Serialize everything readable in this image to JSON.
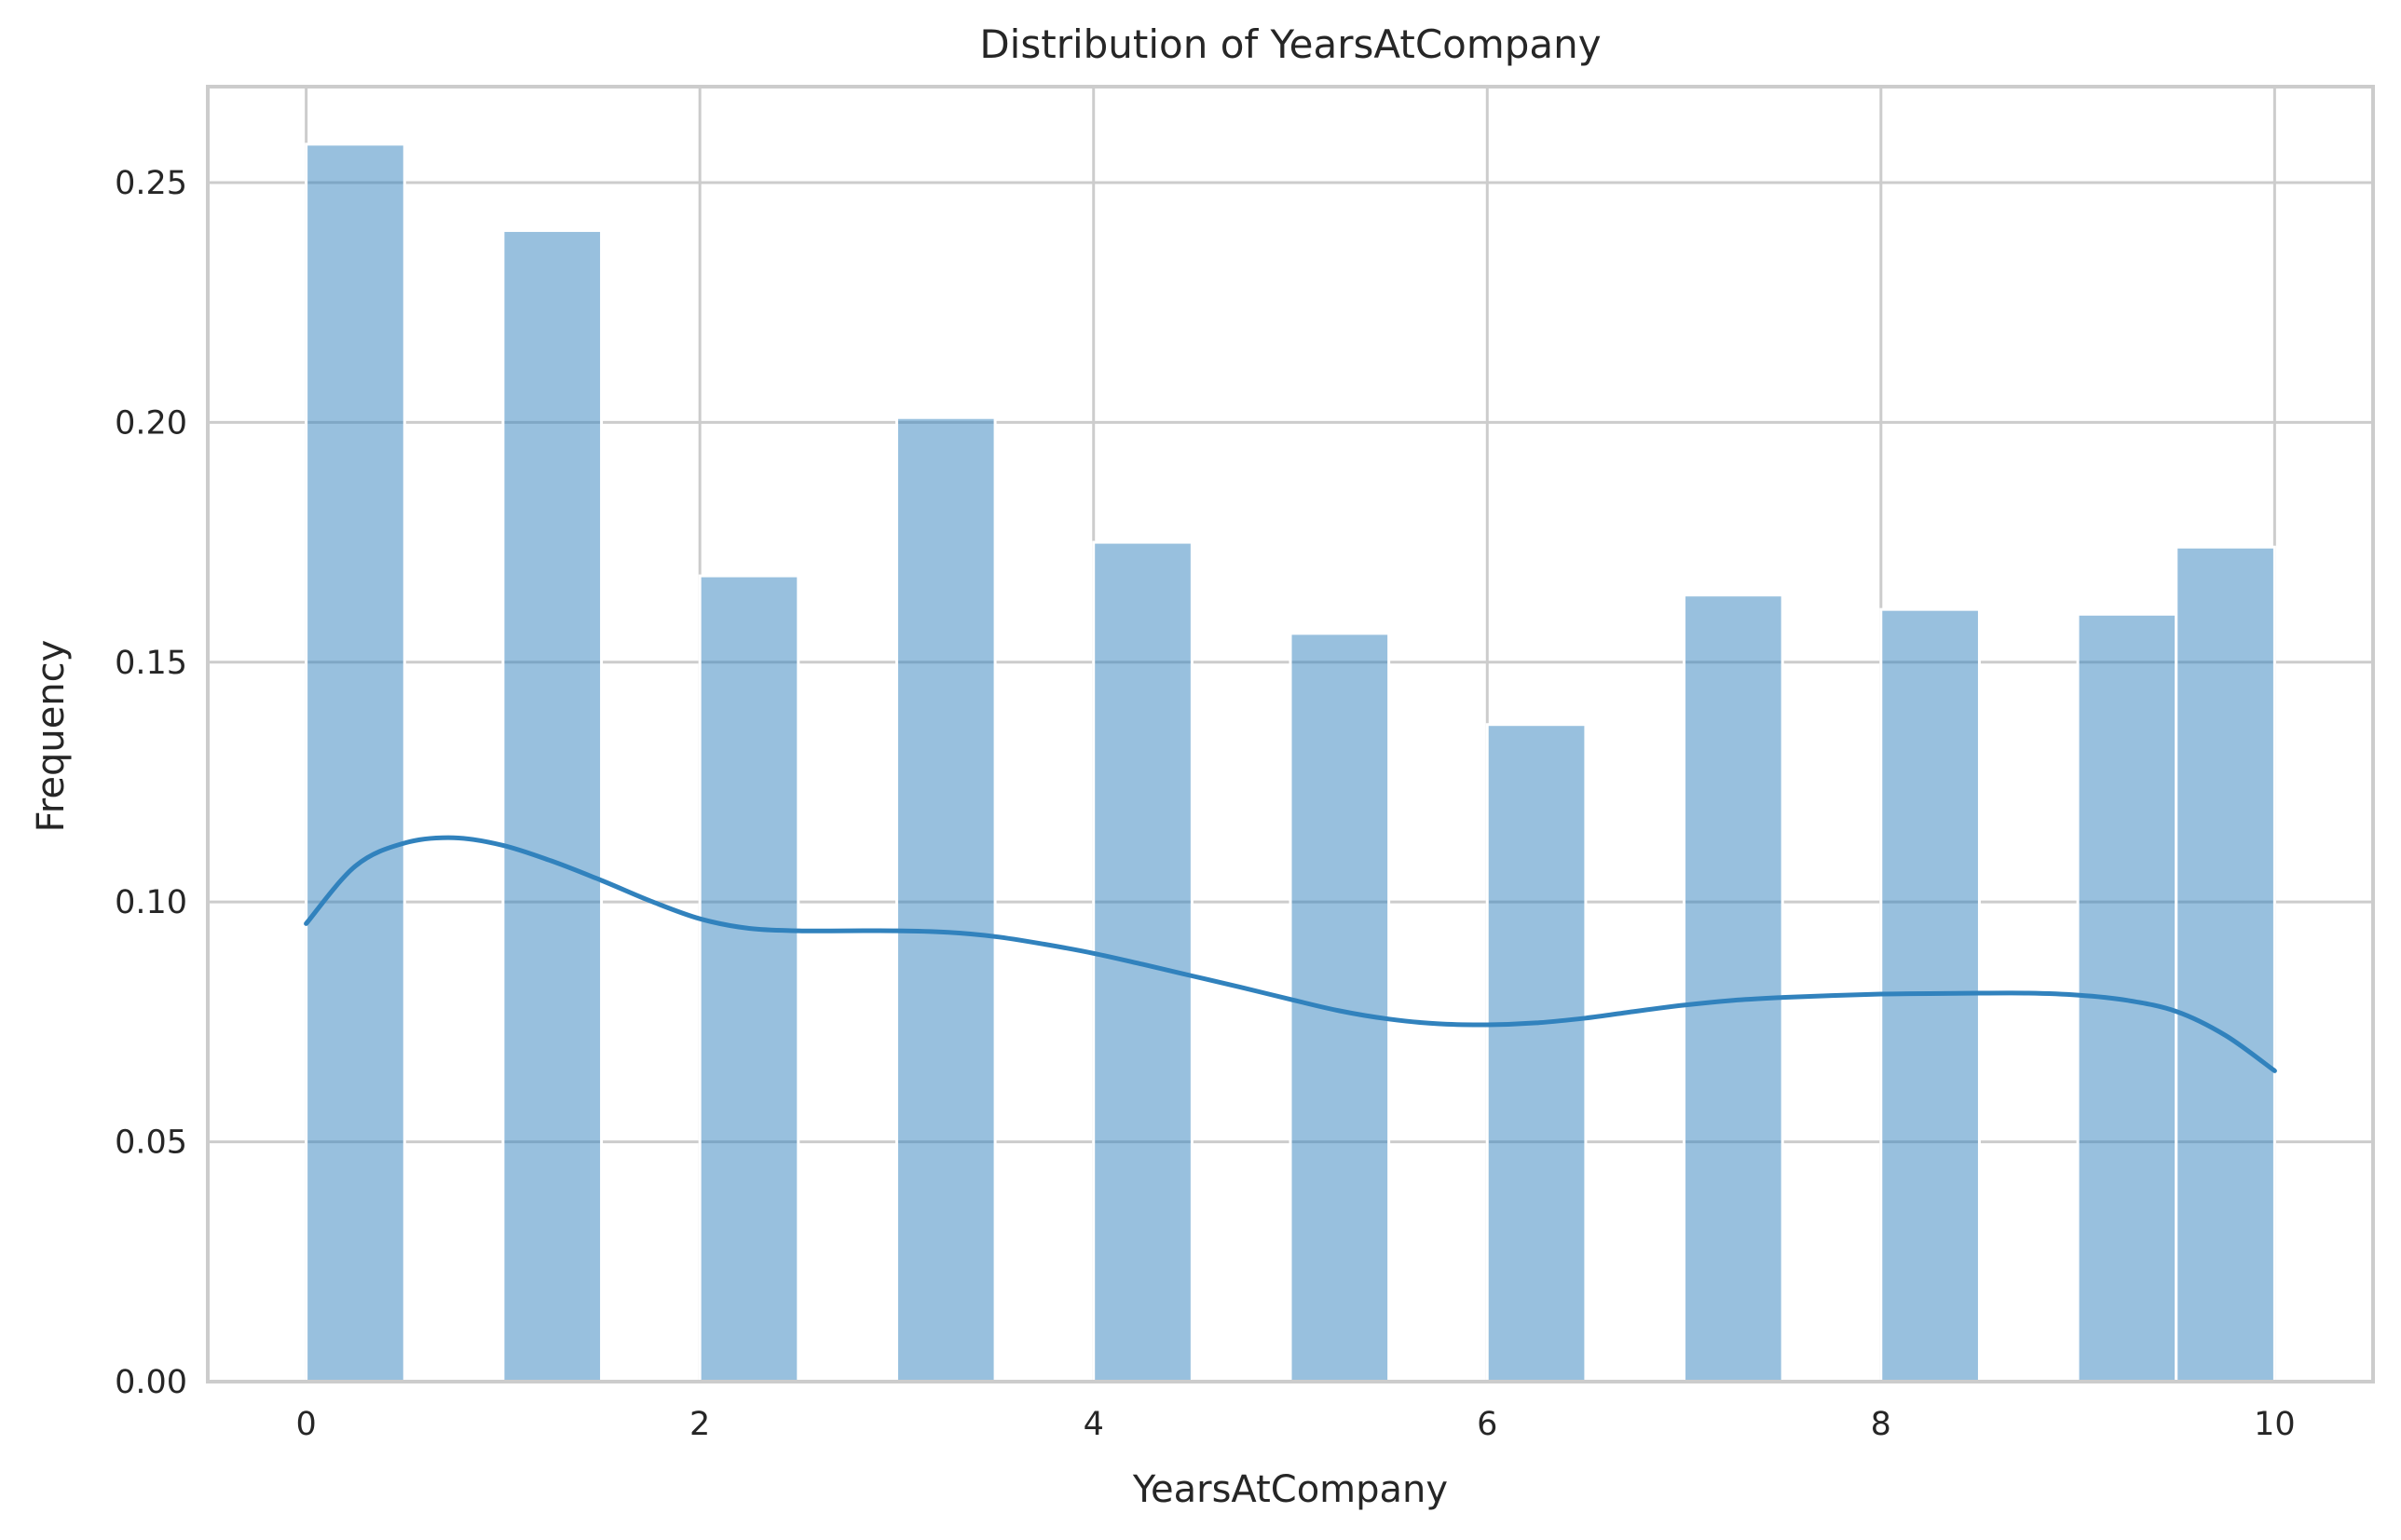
{
  "chart_data": {
    "type": "bar",
    "title": "Distribution of YearsAtCompany",
    "xlabel": "YearsAtCompany",
    "ylabel": "Frequency",
    "xlim": [
      -0.5,
      10.5
    ],
    "ylim": [
      0,
      0.27
    ],
    "xticks": [
      0,
      2,
      4,
      6,
      8,
      10
    ],
    "yticks": [
      0.0,
      0.05,
      0.1,
      0.15,
      0.2,
      0.25
    ],
    "ytick_labels": [
      "0.00",
      "0.05",
      "0.10",
      "0.15",
      "0.20",
      "0.25"
    ],
    "grid": true,
    "bars": [
      {
        "x0": 0.0,
        "x1": 0.5,
        "value": 0.258
      },
      {
        "x0": 1.0,
        "x1": 1.5,
        "value": 0.24
      },
      {
        "x0": 2.0,
        "x1": 2.5,
        "value": 0.168
      },
      {
        "x0": 3.0,
        "x1": 3.5,
        "value": 0.201
      },
      {
        "x0": 4.0,
        "x1": 4.5,
        "value": 0.175
      },
      {
        "x0": 5.0,
        "x1": 5.5,
        "value": 0.156
      },
      {
        "x0": 6.0,
        "x1": 6.5,
        "value": 0.137
      },
      {
        "x0": 7.0,
        "x1": 7.5,
        "value": 0.164
      },
      {
        "x0": 8.0,
        "x1": 8.5,
        "value": 0.161
      },
      {
        "x0": 9.0,
        "x1": 9.5,
        "value": 0.16
      },
      {
        "x0": 9.5,
        "x1": 10.0,
        "value": 0.174
      }
    ],
    "kde": {
      "x": [
        0,
        0.25,
        0.5,
        0.75,
        1,
        1.25,
        1.5,
        1.75,
        2,
        2.25,
        2.5,
        2.75,
        3,
        3.25,
        3.5,
        3.75,
        4,
        4.25,
        4.5,
        4.75,
        5,
        5.25,
        5.5,
        5.75,
        6,
        6.25,
        6.5,
        6.75,
        7,
        7.25,
        7.5,
        7.75,
        8,
        8.25,
        8.5,
        8.75,
        9,
        9.25,
        9.5,
        9.75,
        10
      ],
      "y": [
        0.0955,
        0.1075,
        0.1123,
        0.1134,
        0.1118,
        0.1085,
        0.1045,
        0.1002,
        0.0965,
        0.0945,
        0.094,
        0.094,
        0.094,
        0.0937,
        0.0928,
        0.0912,
        0.0893,
        0.087,
        0.0846,
        0.0822,
        0.0797,
        0.0773,
        0.0756,
        0.0746,
        0.0744,
        0.0748,
        0.0758,
        0.0772,
        0.0785,
        0.0795,
        0.0801,
        0.0805,
        0.0808,
        0.0809,
        0.081,
        0.081,
        0.0806,
        0.0795,
        0.0772,
        0.0722,
        0.0648
      ]
    },
    "colors": {
      "bar": "#3182bd",
      "kde": "#3182bd",
      "grid": "#cccccc",
      "text": "#262626"
    }
  }
}
